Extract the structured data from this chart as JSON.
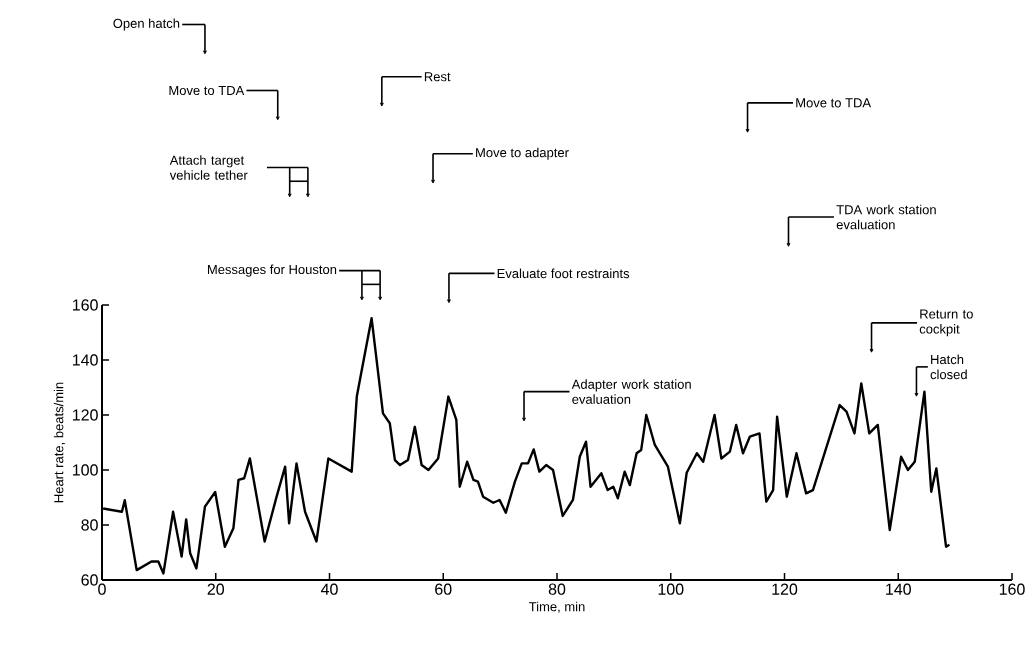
{
  "chart_data": {
    "type": "line",
    "xlabel": "Time, min",
    "ylabel": "Heart rate, beats/min",
    "xlim": [
      0,
      160
    ],
    "xticks": [
      0,
      20,
      40,
      60,
      80,
      100,
      120,
      140,
      160
    ],
    "ylim": [
      60,
      160
    ],
    "yticks": [
      60,
      80,
      100,
      120,
      140,
      160
    ],
    "grid": false,
    "marker": "none",
    "line_style": "solid",
    "series": [
      {
        "color": "#000000",
        "x": [
          0.2,
          3.5,
          4.0,
          6.1,
          8.7,
          9.9,
          10.8,
          12.5,
          14.0,
          14.8,
          15.5,
          16.6,
          18.1,
          19.9,
          21.6,
          23.1,
          24.0,
          25.0,
          26.0,
          28.6,
          30.7,
          32.2,
          32.9,
          34.2,
          35.7,
          37.7,
          39.8,
          43.9,
          44.8,
          45.9,
          47.4,
          49.4,
          50.6,
          51.5,
          52.4,
          53.8,
          55.0,
          56.2,
          57.4,
          59.1,
          60.9,
          62.3,
          62.9,
          64.2,
          65.3,
          66.1,
          67.0,
          68.8,
          69.9,
          71.0,
          72.6,
          73.8,
          74.9,
          75.9,
          76.9,
          78.1,
          79.3,
          81.0,
          82.8,
          84.0,
          85.1,
          85.9,
          87.8,
          88.9,
          89.9,
          90.7,
          91.9,
          92.8,
          94.0,
          94.8,
          95.7,
          97.2,
          99.5,
          101.6,
          102.8,
          104.6,
          105.7,
          107.7,
          108.9,
          110.4,
          111.5,
          112.7,
          113.9,
          115.6,
          116.8,
          118.0,
          118.7,
          120.4,
          122.1,
          123.8,
          125.0,
          129.7,
          130.9,
          132.3,
          133.5,
          134.9,
          136.4,
          138.5,
          140.5,
          141.7,
          142.9,
          144.6,
          145.8,
          146.7,
          148.4,
          149.0
        ],
        "values": [
          86,
          84.8,
          89,
          63.6,
          66.7,
          66.7,
          62.4,
          84.8,
          68.5,
          82,
          69.7,
          64.2,
          86.7,
          92,
          72.1,
          78.8,
          96.4,
          97,
          104.2,
          74,
          90.3,
          101.2,
          80.6,
          102.4,
          84.8,
          74,
          104.2,
          99.4,
          126.7,
          138.8,
          155.2,
          120.6,
          117,
          103.6,
          101.8,
          103.6,
          115.7,
          101.8,
          100,
          104.2,
          126.7,
          118.2,
          93.9,
          103,
          96.4,
          95.8,
          90.3,
          88.1,
          89.1,
          84.5,
          95.8,
          102.4,
          102.4,
          107.5,
          99.4,
          101.8,
          100,
          83.3,
          89.1,
          104.8,
          110.3,
          93.9,
          98.8,
          92.7,
          93.9,
          89.7,
          99.4,
          94.5,
          106.1,
          107.3,
          120,
          109.1,
          101.2,
          80.6,
          99,
          106.1,
          103,
          120,
          104.2,
          106.7,
          116.4,
          106.1,
          112.1,
          113.3,
          88.5,
          92.7,
          119.4,
          90.3,
          106.1,
          91.5,
          92.7,
          123.6,
          121.2,
          113.3,
          131.5,
          113.3,
          116.4,
          78.2,
          104.8,
          100,
          103,
          128.5,
          92.1,
          100.6,
          72.1,
          72.8
        ]
      }
    ],
    "annotations": [
      "Open hatch",
      "Move to TDA",
      "Attach target vehicle tether",
      "Rest",
      "Move to adapter",
      "Messages for Houston",
      "Evaluate foot restraints",
      "Adapter work station evaluation",
      "Move to TDA",
      "TDA work station evaluation",
      "Return to cockpit",
      "Hatch closed"
    ]
  }
}
